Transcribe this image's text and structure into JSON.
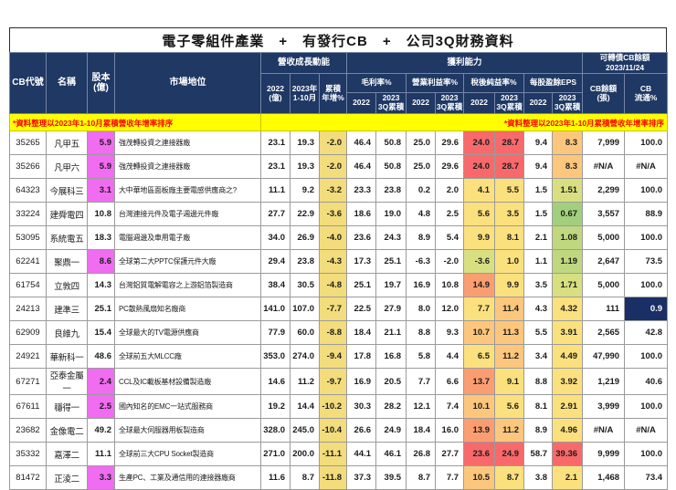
{
  "title": "電子零組件產業　+　有發行CB　+　公司3Q財務資料",
  "note_left": "*資料整理以2023年1-10月累積營收年增率排序",
  "note_right": "*資料整理以2023年1-10月累積營收年增率排序",
  "header": {
    "cb_code": "CB代號",
    "name": "名稱",
    "capital": "股本\n(億)",
    "market": "市場地位",
    "revenue_group": "營收成長動能",
    "profit_group": "獲利能力",
    "cb_group": "可轉債CB餘額\n2023/11/24",
    "rev_2022": "2022\n(億)",
    "rev_2023": "2023年\n1-10月",
    "rev_yoy": "累積\n年增%",
    "gross": "毛利率%",
    "operating": "營業利益率%",
    "net": "稅後純益率%",
    "eps": "每股盈餘EPS",
    "y2022": "2022",
    "q3col": "2023\n3Q累積",
    "cb_balance": "CB餘額\n(張)",
    "cb_float": "CB\n流通%"
  },
  "colors": {
    "header_navy": "#1F3864",
    "pink": "#F06CF0",
    "khaki": "#F2DC7B",
    "note_yellow": "#FFFF00",
    "note_red": "#FF0000",
    "heat": {
      "red": "#F8696B",
      "orange": "#FA9E72",
      "orange_yellow": "#FCC77D",
      "yellow": "#FBE07E",
      "yellow_green": "#D8DF81",
      "green_yellow": "#BFD77F",
      "green": "#A2CF7E",
      "navy": "#1A2F66"
    }
  },
  "rows": [
    {
      "code": "35265",
      "name": "凡甲五",
      "capital": "5.9",
      "pink": true,
      "market": "強茂轉投資之連接器廠",
      "nums": [
        "23.1",
        "19.3",
        "-2.0",
        "46.4",
        "50.8",
        "25.0",
        "29.6",
        "24.0",
        "28.7",
        "9.4",
        "8.3",
        "7,999",
        "100.0"
      ],
      "heat": {
        "7": "red",
        "8": "red",
        "10": "orange_yellow"
      }
    },
    {
      "code": "35266",
      "name": "凡甲六",
      "capital": "5.9",
      "pink": true,
      "market": "強茂轉投資之連接器廠",
      "nums": [
        "23.1",
        "19.3",
        "-2.0",
        "46.4",
        "50.8",
        "25.0",
        "29.6",
        "24.0",
        "28.7",
        "9.4",
        "8.3",
        "#N/A",
        "#N/A"
      ],
      "heat": {
        "7": "red",
        "8": "red",
        "10": "orange_yellow"
      }
    },
    {
      "code": "64323",
      "name": "今展科三",
      "capital": "3.1",
      "pink": true,
      "market": "大中華地區面板廠主要電感供應商之?",
      "nums": [
        "11.1",
        "9.2",
        "-3.2",
        "23.3",
        "23.8",
        "0.2",
        "2.0",
        "4.1",
        "5.5",
        "1.5",
        "1.51",
        "2,299",
        "100.0"
      ],
      "heat": {
        "7": "yellow",
        "8": "yellow",
        "10": "yellow_green"
      }
    },
    {
      "code": "33224",
      "name": "建舜電四",
      "capital": "10.8",
      "pink": false,
      "market": "台灣連接元件及電子週邊元件廠",
      "nums": [
        "27.7",
        "22.9",
        "-3.6",
        "18.6",
        "19.0",
        "4.8",
        "2.5",
        "5.6",
        "3.5",
        "1.5",
        "0.67",
        "3,557",
        "88.9"
      ],
      "heat": {
        "7": "yellow",
        "8": "yellow",
        "10": "green"
      }
    },
    {
      "code": "53095",
      "name": "系統電五",
      "capital": "18.3",
      "pink": false,
      "market": "電腦週邊及車用電子廠",
      "nums": [
        "34.0",
        "26.9",
        "-4.0",
        "23.6",
        "24.3",
        "8.9",
        "5.4",
        "9.9",
        "8.1",
        "2.1",
        "1.08",
        "5,000",
        "100.0"
      ],
      "heat": {
        "7": "yellow",
        "8": "yellow",
        "10": "green_yellow"
      }
    },
    {
      "code": "62241",
      "name": "聚鼎一",
      "capital": "8.6",
      "pink": true,
      "market": "全球第二大PPTC保護元件大廠",
      "nums": [
        "29.4",
        "23.8",
        "-4.3",
        "17.3",
        "25.1",
        "-6.3",
        "-2.0",
        "-3.6",
        "1.0",
        "1.1",
        "1.19",
        "2,647",
        "73.5"
      ],
      "heat": {
        "7": "yellow_green",
        "8": "yellow",
        "10": "green_yellow"
      }
    },
    {
      "code": "61754",
      "name": "立敦四",
      "capital": "14.3",
      "pink": false,
      "market": "台灣鋁質電解電容之上游鋁箔製造商",
      "nums": [
        "38.4",
        "30.5",
        "-4.8",
        "25.1",
        "19.7",
        "16.9",
        "10.8",
        "14.9",
        "9.9",
        "3.5",
        "1.71",
        "5,000",
        "100.0"
      ],
      "heat": {
        "7": "orange",
        "8": "yellow",
        "10": "yellow_green"
      }
    },
    {
      "code": "24213",
      "name": "建準三",
      "capital": "25.1",
      "pink": false,
      "market": "PC散熱風扇知名廠商",
      "nums": [
        "141.0",
        "107.0",
        "-7.7",
        "22.5",
        "27.9",
        "8.0",
        "12.0",
        "7.7",
        "11.4",
        "4.3",
        "4.32",
        "111",
        "0.9"
      ],
      "heat": {
        "7": "yellow",
        "8": "orange_yellow",
        "10": "yellow",
        "12": "navy"
      }
    },
    {
      "code": "62909",
      "name": "良維九",
      "capital": "15.4",
      "pink": false,
      "market": "全球最大的TV電源供應商",
      "nums": [
        "77.9",
        "60.0",
        "-8.8",
        "18.4",
        "21.1",
        "8.8",
        "9.3",
        "10.7",
        "11.3",
        "5.5",
        "3.91",
        "2,565",
        "42.8"
      ],
      "heat": {
        "7": "orange_yellow",
        "8": "orange_yellow",
        "10": "yellow"
      }
    },
    {
      "code": "24921",
      "name": "華新科一",
      "capital": "48.6",
      "pink": false,
      "market": "全球前五大MLCC廠",
      "nums": [
        "353.0",
        "274.0",
        "-9.4",
        "17.8",
        "16.8",
        "5.8",
        "4.4",
        "6.5",
        "11.2",
        "3.4",
        "4.49",
        "47,990",
        "100.0"
      ],
      "heat": {
        "7": "yellow",
        "8": "orange_yellow",
        "10": "yellow"
      }
    },
    {
      "code": "67271",
      "name": "亞泰金屬一",
      "capital": "2.4",
      "pink": true,
      "market": "CCL及IC載板基材設備製造廠",
      "nums": [
        "14.6",
        "11.2",
        "-9.7",
        "16.9",
        "20.5",
        "7.7",
        "6.6",
        "13.7",
        "9.1",
        "8.8",
        "3.92",
        "1,219",
        "40.6"
      ],
      "heat": {
        "7": "orange",
        "8": "yellow",
        "10": "yellow"
      }
    },
    {
      "code": "67611",
      "name": "穩得一",
      "capital": "2.5",
      "pink": true,
      "market": "國內知名的EMC一站式服務商",
      "nums": [
        "19.2",
        "14.4",
        "-10.2",
        "30.3",
        "28.2",
        "12.1",
        "7.4",
        "10.1",
        "5.6",
        "8.1",
        "2.91",
        "3,999",
        "100.0"
      ],
      "heat": {
        "7": "orange_yellow",
        "8": "yellow",
        "10": "yellow"
      }
    },
    {
      "code": "23682",
      "name": "金像電二",
      "capital": "49.2",
      "pink": false,
      "market": "全球最大伺服器用板製造商",
      "nums": [
        "328.0",
        "245.0",
        "-10.4",
        "26.6",
        "24.9",
        "18.4",
        "16.0",
        "13.9",
        "11.2",
        "8.9",
        "4.96",
        "#N/A",
        "#N/A"
      ],
      "heat": {
        "7": "orange",
        "8": "orange_yellow",
        "10": "yellow"
      }
    },
    {
      "code": "35332",
      "name": "嘉澤二",
      "capital": "11.1",
      "pink": false,
      "market": "全球前三大CPU Socket製造商",
      "nums": [
        "271.0",
        "200.0",
        "-11.1",
        "44.1",
        "46.1",
        "26.8",
        "27.7",
        "23.6",
        "24.9",
        "58.7",
        "39.36",
        "9,999",
        "100.0"
      ],
      "heat": {
        "7": "red",
        "8": "red",
        "10": "red"
      }
    },
    {
      "code": "81472",
      "name": "正淩二",
      "capital": "3.3",
      "pink": true,
      "market": "生產PC、工業及通信用的連接器廠商",
      "nums": [
        "11.6",
        "8.7",
        "-11.8",
        "37.3",
        "39.5",
        "8.7",
        "7.7",
        "10.5",
        "8.7",
        "3.8",
        "2.1",
        "1,468",
        "73.4"
      ],
      "heat": {
        "7": "orange_yellow",
        "8": "yellow",
        "10": "yellow"
      }
    }
  ]
}
